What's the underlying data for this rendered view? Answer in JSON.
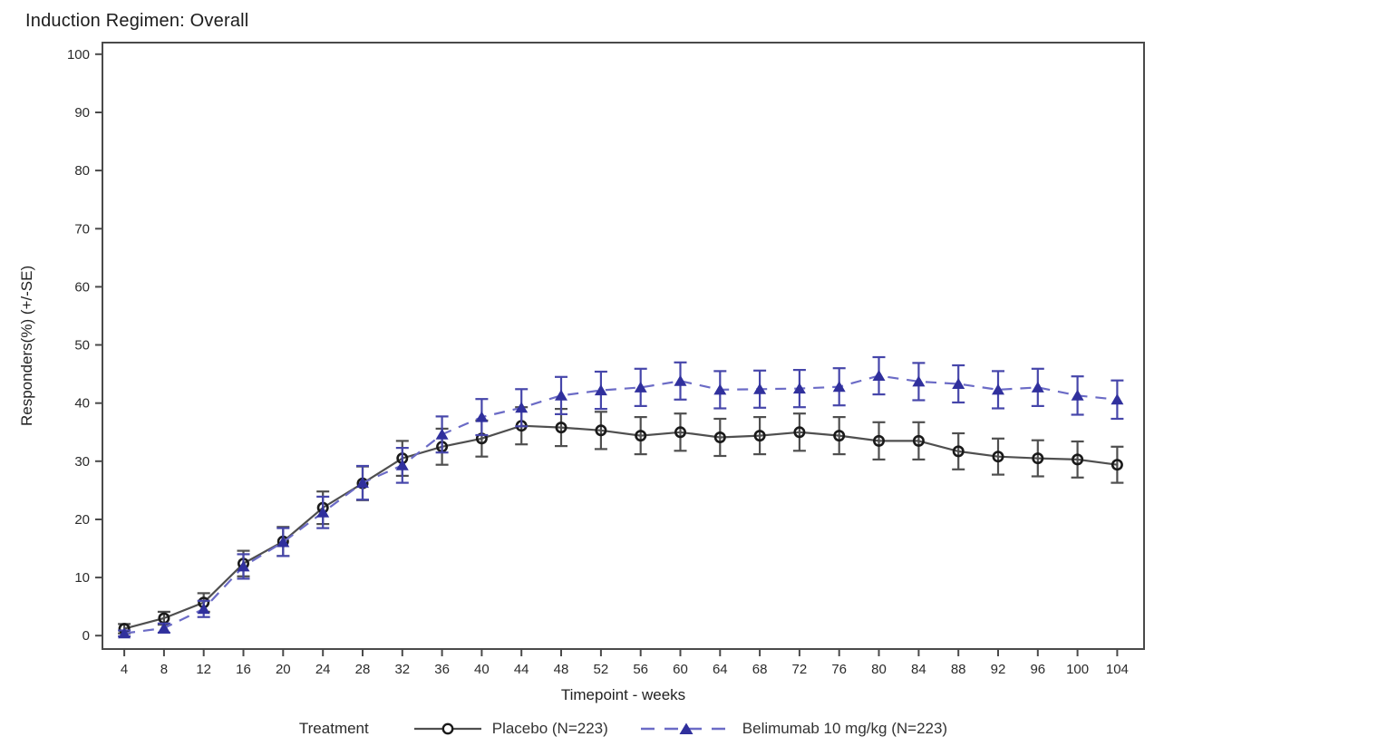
{
  "title": "Induction Regimen: Overall",
  "chart_data": {
    "type": "line",
    "title": "Induction Regimen: Overall",
    "xlabel": "Timepoint - weeks",
    "ylabel": "Responders(%) (+/-SE)",
    "xlim": [
      1.8,
      106.7
    ],
    "ylim": [
      -2.3,
      102.0
    ],
    "xticks": [
      4,
      8,
      12,
      16,
      20,
      24,
      28,
      32,
      36,
      40,
      44,
      48,
      52,
      56,
      60,
      64,
      68,
      72,
      76,
      80,
      84,
      88,
      92,
      96,
      100,
      104
    ],
    "yticks": [
      0,
      10,
      20,
      30,
      40,
      50,
      60,
      70,
      80,
      90,
      100
    ],
    "grid": false,
    "error_bars": true,
    "frame_color": "#4a4a4a",
    "legend": {
      "title": "Treatment",
      "position": "bottom"
    },
    "x": [
      4,
      8,
      12,
      16,
      20,
      24,
      28,
      32,
      36,
      40,
      44,
      48,
      52,
      56,
      60,
      64,
      68,
      72,
      76,
      80,
      84,
      88,
      92,
      96,
      100,
      104
    ],
    "series": [
      {
        "name": "Placebo (N=223)",
        "line_style": "solid",
        "line_color": "#4f4f4f",
        "error_color": "#4f4f4f",
        "marker": "circle-open",
        "marker_color": "#1a1a1a",
        "values": [
          1.2,
          3.0,
          5.7,
          12.4,
          16.2,
          22.0,
          26.2,
          30.5,
          32.5,
          33.9,
          36.1,
          35.8,
          35.3,
          34.4,
          35.0,
          34.1,
          34.4,
          35.0,
          34.4,
          33.5,
          33.5,
          31.7,
          30.8,
          30.5,
          30.3,
          29.4
        ],
        "se": [
          0.8,
          1.1,
          1.6,
          2.2,
          2.5,
          2.8,
          2.9,
          3.0,
          3.1,
          3.1,
          3.2,
          3.2,
          3.2,
          3.2,
          3.2,
          3.2,
          3.2,
          3.2,
          3.2,
          3.2,
          3.2,
          3.1,
          3.1,
          3.1,
          3.1,
          3.1
        ]
      },
      {
        "name": "Belimumab 10 mg/kg (N=223)",
        "line_style": "dashed",
        "line_color": "#6b6bc6",
        "error_color": "#4646aa",
        "marker": "triangle-filled",
        "marker_color": "#30309d",
        "values": [
          0.4,
          1.3,
          4.6,
          11.9,
          16.1,
          21.2,
          26.3,
          29.3,
          34.6,
          37.6,
          39.2,
          41.3,
          42.2,
          42.7,
          43.8,
          42.3,
          42.4,
          42.5,
          42.8,
          44.7,
          43.7,
          43.3,
          42.3,
          42.7,
          41.3,
          40.6
        ],
        "se": [
          0.5,
          0.8,
          1.4,
          2.1,
          2.4,
          2.7,
          2.9,
          3.0,
          3.1,
          3.1,
          3.2,
          3.2,
          3.2,
          3.2,
          3.2,
          3.2,
          3.2,
          3.2,
          3.2,
          3.2,
          3.2,
          3.2,
          3.2,
          3.2,
          3.3,
          3.3
        ]
      }
    ]
  }
}
